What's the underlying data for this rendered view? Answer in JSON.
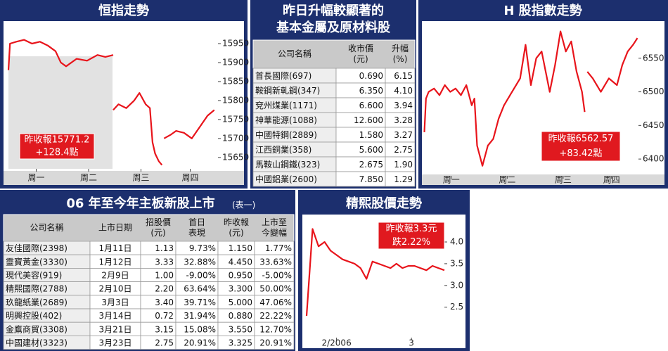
{
  "chart_data": [
    {
      "type": "line",
      "title": "恒指走勢",
      "color": "#e8141b",
      "x": [
        0,
        0.03,
        0.15,
        0.3,
        0.45,
        0.6,
        0.75,
        0.9,
        1.0,
        1.1,
        1.3,
        1.5,
        1.7,
        1.85,
        2.0,
        null,
        2.0,
        2.1,
        2.25,
        2.4,
        2.5,
        2.62,
        2.7,
        2.75,
        2.8,
        2.87,
        2.93,
        null,
        2.97,
        3.1,
        3.2,
        3.35,
        3.5,
        3.65,
        3.8,
        3.93
      ],
      "values": [
        15880,
        15950,
        15955,
        15960,
        15950,
        15955,
        15945,
        15930,
        15900,
        15890,
        15910,
        15905,
        15920,
        15915,
        15920,
        null,
        15775,
        15790,
        15780,
        15800,
        15820,
        15790,
        15780,
        15690,
        15660,
        15640,
        15630,
        null,
        15700,
        15710,
        15720,
        15715,
        15700,
        15730,
        15760,
        15775
      ],
      "xlim": [
        0,
        4
      ],
      "xticks": [
        {
          "value": 0.53,
          "label": "周一"
        },
        {
          "value": 1.53,
          "label": "周二"
        },
        {
          "value": 2.53,
          "label": "周三"
        },
        {
          "value": 3.47,
          "label": "周四"
        }
      ],
      "ylim": [
        15620,
        16000
      ],
      "yticks": [
        15650,
        15700,
        15750,
        15800,
        15850,
        15900,
        15950
      ],
      "annotations": [
        "昨收報15771.2",
        "+128.4點"
      ]
    },
    {
      "type": "line",
      "title": "H 股指數走勢",
      "color": "#e8141b",
      "x": [
        0.02,
        0.05,
        0.1,
        0.2,
        0.3,
        0.4,
        0.5,
        0.6,
        0.7,
        0.8,
        0.9,
        0.95,
        1.0,
        1.1,
        1.2,
        1.3,
        1.4,
        1.5,
        1.65,
        1.8,
        1.9,
        2.0,
        2.1,
        2.2,
        2.35,
        2.45,
        2.55,
        2.65,
        2.75,
        2.85,
        2.95,
        3.0,
        null,
        3.05,
        3.15,
        3.3,
        3.45,
        3.6,
        3.7,
        3.8,
        3.9,
        3.98
      ],
      "values": [
        6440,
        6490,
        6500,
        6505,
        6495,
        6510,
        6500,
        6505,
        6495,
        6510,
        6480,
        6490,
        6420,
        6390,
        6420,
        6430,
        6460,
        6480,
        6500,
        6520,
        6570,
        6510,
        6550,
        6560,
        6500,
        6540,
        6590,
        6560,
        6575,
        6530,
        6500,
        6470,
        null,
        6530,
        6520,
        6500,
        6520,
        6510,
        6540,
        6560,
        6570,
        6580
      ],
      "xlim": [
        0,
        4
      ],
      "xticks": [
        {
          "value": 0.52,
          "label": "周一"
        },
        {
          "value": 1.56,
          "label": "周二"
        },
        {
          "value": 2.6,
          "label": "周三"
        },
        {
          "value": 3.5,
          "label": "周四"
        }
      ],
      "ylim": [
        6375,
        6600
      ],
      "yticks": [
        6400,
        6450,
        6500,
        6550
      ],
      "annotations": [
        "昨收報6562.57",
        "+83.42點"
      ]
    },
    {
      "type": "line",
      "title": "精熙股價走勢",
      "color": "#e8141b",
      "values": [
        2.3,
        4.3,
        3.9,
        4.0,
        3.8,
        3.7,
        3.6,
        3.55,
        3.5,
        3.4,
        3.15,
        3.55,
        3.5,
        3.45,
        3.4,
        3.5,
        3.4,
        3.45,
        3.45,
        3.4,
        3.35,
        3.45,
        3.4,
        3.35
      ],
      "xlim": [
        0,
        23
      ],
      "xticks": [
        {
          "value": 5,
          "label": "2/2006"
        },
        {
          "value": 17.5,
          "label": "3"
        }
      ],
      "ylim": [
        1.8,
        4.55
      ],
      "yticks": [
        2.5,
        {
          "value": 3.0,
          "label": "3.0"
        },
        3.5,
        {
          "value": 4.0,
          "label": "4.0"
        }
      ],
      "annotations": [
        "昨收報3.3元",
        "跌2.22%"
      ]
    }
  ],
  "tables": [
    {
      "title": [
        "昨日升幅較顯著的",
        "基本金屬及原材料股"
      ],
      "header": [
        [
          "公司名稱"
        ],
        [
          "收市價",
          "(元)"
        ],
        [
          "升幅",
          "(%)"
        ]
      ],
      "rows": [
        [
          "首長國際(697)",
          "0.690",
          "6.15"
        ],
        [
          "鞍鋼新軋鋼(347)",
          "6.350",
          "4.10"
        ],
        [
          "兗州煤業(1171)",
          "6.600",
          "3.94"
        ],
        [
          "神華能源(1088)",
          "12.600",
          "3.28"
        ],
        [
          "中國特鋼(2889)",
          "1.580",
          "3.27"
        ],
        [
          "江西銅業(358)",
          "5.600",
          "2.75"
        ],
        [
          "馬鞍山鋼鐵(323)",
          "2.675",
          "1.90"
        ],
        [
          "中國鋁業(2600)",
          "7.850",
          "1.29"
        ]
      ]
    },
    {
      "title": [
        "06 年至今年主板新股上市"
      ],
      "subtitle": "(表一)",
      "header": [
        [
          "公司名稱"
        ],
        [
          "上市日期"
        ],
        [
          "招股價",
          "(元)"
        ],
        [
          "首日",
          "表現"
        ],
        [
          "昨收報",
          "(元)"
        ],
        [
          "上市至",
          "今變幅"
        ]
      ],
      "rows": [
        [
          "友佳國際(2398)",
          "1月11日",
          "1.13",
          "9.73%",
          "1.150",
          "1.77%"
        ],
        [
          "靈寶黃金(3330)",
          "1月12日",
          "3.33",
          "32.88%",
          "4.450",
          "33.63%"
        ],
        [
          "現代美容(919)",
          "2月9日",
          "1.00",
          "-9.00%",
          "0.950",
          "-5.00%"
        ],
        [
          "精熙國際(2788)",
          "2月10日",
          "2.20",
          "63.64%",
          "3.300",
          "50.00%"
        ],
        [
          "玖龍紙業(2689)",
          "3月3日",
          "3.40",
          "39.71%",
          "5.000",
          "47.06%"
        ],
        [
          "明興控股(402)",
          "3月14日",
          "0.72",
          "31.94%",
          "0.880",
          "22.22%"
        ],
        [
          "金鷹商貿(3308)",
          "3月21日",
          "3.15",
          "15.08%",
          "3.550",
          "12.70%"
        ],
        [
          "中國建材(3323)",
          "3月23日",
          "2.75",
          "20.91%",
          "3.325",
          "20.91%"
        ]
      ]
    }
  ]
}
